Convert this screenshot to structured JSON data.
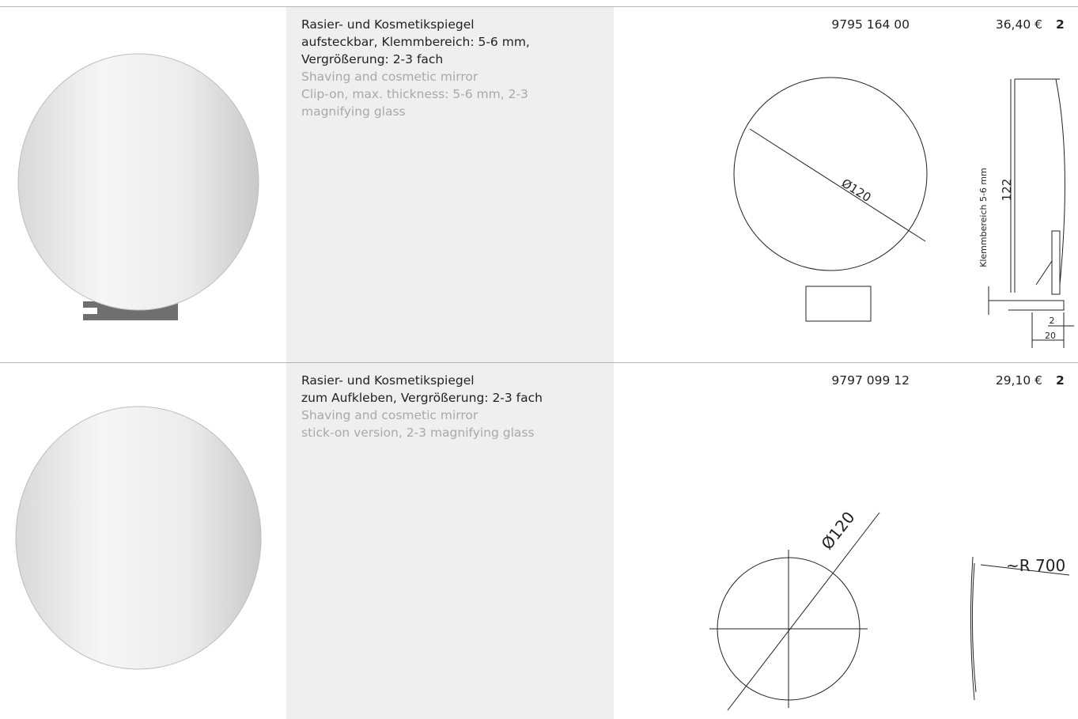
{
  "products": [
    {
      "title_de": [
        "Rasier- und Kosmetikspiegel",
        "aufsteckbar, Klemmbereich: 5-6 mm,",
        "Vergrößerung: 2-3 fach"
      ],
      "title_en": [
        "Shaving and cosmetic mirror",
        "Clip-on, max. thickness: 5-6 mm, 2-3",
        "magnifying glass"
      ],
      "article": "9795 164 00",
      "price": "36,40 €",
      "quantity": "2",
      "drawing": {
        "diameter": "Ø120",
        "clamp_range": "Klemmbereich 5-6 mm",
        "height": "122",
        "thickness": "2",
        "depth": "20"
      }
    },
    {
      "title_de": [
        "Rasier- und Kosmetikspiegel",
        "zum Aufkleben, Vergrößerung: 2-3 fach"
      ],
      "title_en": [
        "Shaving and cosmetic mirror",
        "stick-on version, 2-3 magnifying glass"
      ],
      "article": "9797 099 12",
      "price": "29,10 €",
      "quantity": "2",
      "drawing": {
        "diameter": "Ø120",
        "radius": "~R 700"
      }
    }
  ]
}
